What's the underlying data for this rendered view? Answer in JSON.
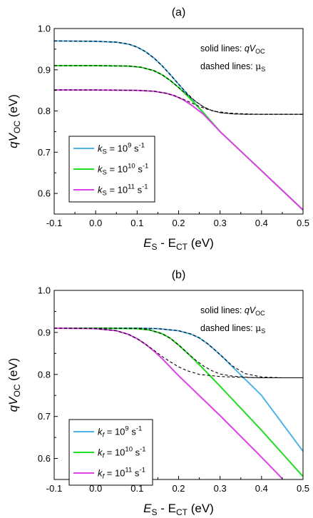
{
  "chart_data": [
    {
      "type": "line",
      "panel_label": "(a)",
      "xlabel": {
        "main": "E",
        "sub1": "S",
        "mid": " - E",
        "sub2": "CT",
        "unit": " (eV)"
      },
      "ylabel": {
        "pre": "qV",
        "sub": "OC",
        "unit": " (eV)"
      },
      "xlim": [
        -0.1,
        0.5
      ],
      "ylim": [
        0.55,
        1.0
      ],
      "xticks": [
        "-0.1",
        "0.0",
        "0.1",
        "0.2",
        "0.3",
        "0.4",
        "0.5"
      ],
      "yticks": [
        "0.6",
        "0.7",
        "0.8",
        "0.9",
        "1.0"
      ],
      "annotations": {
        "solid": {
          "text": "solid lines: ",
          "italic": "qV",
          "sub": "OC"
        },
        "dashed": {
          "text": "dashed lines: ",
          "mu": "μ",
          "sub": "S"
        }
      },
      "legend_position": "lower-left",
      "series": [
        {
          "name": "kS = 10^9 s^-1",
          "k": "k",
          "k_sub": "S",
          "exp": "9",
          "color": "#4fb3e8",
          "x": [
            -0.1,
            0.0,
            0.05,
            0.08,
            0.1,
            0.12,
            0.14,
            0.16,
            0.18,
            0.2,
            0.22,
            0.24,
            0.26,
            0.3,
            0.4,
            0.5
          ],
          "y": [
            0.97,
            0.969,
            0.967,
            0.962,
            0.955,
            0.944,
            0.929,
            0.91,
            0.888,
            0.865,
            0.842,
            0.818,
            0.795,
            0.75,
            0.655,
            0.56
          ]
        },
        {
          "name": "kS = 10^10 s^-1",
          "k": "k",
          "k_sub": "S",
          "exp": "10",
          "color": "#22dd22",
          "x": [
            -0.1,
            0.0,
            0.08,
            0.11,
            0.14,
            0.16,
            0.18,
            0.2,
            0.22,
            0.24,
            0.26,
            0.3,
            0.4,
            0.5
          ],
          "y": [
            0.91,
            0.91,
            0.909,
            0.906,
            0.898,
            0.888,
            0.874,
            0.857,
            0.838,
            0.817,
            0.796,
            0.75,
            0.655,
            0.56
          ]
        },
        {
          "name": "kS = 10^11 s^-1",
          "k": "k",
          "k_sub": "S",
          "exp": "11",
          "color": "#e040e8",
          "x": [
            -0.1,
            0.0,
            0.1,
            0.14,
            0.17,
            0.19,
            0.21,
            0.23,
            0.26,
            0.3,
            0.4,
            0.5
          ],
          "y": [
            0.851,
            0.851,
            0.85,
            0.848,
            0.843,
            0.837,
            0.828,
            0.815,
            0.792,
            0.75,
            0.655,
            0.56
          ]
        }
      ],
      "dashed_series": [
        {
          "x": [
            -0.1,
            0.0,
            0.05,
            0.08,
            0.1,
            0.12,
            0.14,
            0.16,
            0.18,
            0.2,
            0.22,
            0.24,
            0.26,
            0.28,
            0.3,
            0.33,
            0.36,
            0.4,
            0.5
          ],
          "y": [
            0.97,
            0.969,
            0.967,
            0.962,
            0.955,
            0.944,
            0.929,
            0.91,
            0.888,
            0.865,
            0.843,
            0.824,
            0.81,
            0.801,
            0.796,
            0.793,
            0.792,
            0.792,
            0.792
          ]
        },
        {
          "x": [
            -0.1,
            0.0,
            0.08,
            0.11,
            0.14,
            0.16,
            0.18,
            0.2,
            0.22,
            0.24,
            0.26,
            0.28,
            0.3,
            0.33,
            0.36,
            0.4,
            0.5
          ],
          "y": [
            0.91,
            0.91,
            0.909,
            0.906,
            0.898,
            0.888,
            0.874,
            0.857,
            0.84,
            0.824,
            0.81,
            0.801,
            0.796,
            0.793,
            0.792,
            0.792,
            0.792
          ]
        },
        {
          "x": [
            -0.1,
            0.0,
            0.1,
            0.14,
            0.17,
            0.19,
            0.21,
            0.23,
            0.25,
            0.27,
            0.29,
            0.32,
            0.36,
            0.4,
            0.5
          ],
          "y": [
            0.851,
            0.851,
            0.85,
            0.848,
            0.843,
            0.837,
            0.829,
            0.82,
            0.811,
            0.804,
            0.799,
            0.795,
            0.793,
            0.792,
            0.792
          ]
        }
      ]
    },
    {
      "type": "line",
      "panel_label": "(b)",
      "xlabel": {
        "main": "E",
        "sub1": "S",
        "mid": " - E",
        "sub2": "CT",
        "unit": " (eV)"
      },
      "ylabel": {
        "pre": "qV",
        "sub": "OC",
        "unit": " (eV)"
      },
      "xlim": [
        -0.1,
        0.5
      ],
      "ylim": [
        0.55,
        1.0
      ],
      "xticks": [
        "-0.1",
        "0.0",
        "0.1",
        "0.2",
        "0.3",
        "0.4",
        "0.5"
      ],
      "yticks": [
        "0.6",
        "0.7",
        "0.8",
        "0.9",
        "1.0"
      ],
      "annotations": {
        "solid": {
          "text": "solid lines: ",
          "italic": "qV",
          "sub": "OC"
        },
        "dashed": {
          "text": "dashed lines: ",
          "mu": "μ",
          "sub": "S"
        }
      },
      "legend_position": "lower-left",
      "series": [
        {
          "name": "kf = 10^9 s^-1",
          "k": "k",
          "k_sub": "f",
          "exp": "9",
          "color": "#4fb3e8",
          "x": [
            -0.1,
            0.0,
            0.1,
            0.15,
            0.2,
            0.23,
            0.25,
            0.27,
            0.29,
            0.31,
            0.33,
            0.36,
            0.4,
            0.5
          ],
          "y": [
            0.91,
            0.91,
            0.91,
            0.909,
            0.904,
            0.896,
            0.887,
            0.873,
            0.856,
            0.838,
            0.818,
            0.789,
            0.75,
            0.617
          ]
        },
        {
          "name": "kf = 10^10 s^-1",
          "k": "k",
          "k_sub": "f",
          "exp": "10",
          "color": "#22dd22",
          "x": [
            -0.1,
            0.0,
            0.1,
            0.13,
            0.16,
            0.18,
            0.2,
            0.22,
            0.24,
            0.26,
            0.3,
            0.4,
            0.5
          ],
          "y": [
            0.91,
            0.91,
            0.909,
            0.906,
            0.897,
            0.886,
            0.87,
            0.852,
            0.833,
            0.813,
            0.772,
            0.667,
            0.557
          ]
        },
        {
          "name": "kf = 10^11 s^-1",
          "k": "k",
          "k_sub": "f",
          "exp": "11",
          "color": "#e040e8",
          "x": [
            -0.1,
            0.0,
            0.05,
            0.08,
            0.1,
            0.12,
            0.14,
            0.16,
            0.2,
            0.3,
            0.4,
            0.45
          ],
          "y": [
            0.91,
            0.909,
            0.904,
            0.895,
            0.885,
            0.872,
            0.856,
            0.838,
            0.797,
            0.702,
            0.603,
            0.552
          ]
        }
      ],
      "dashed_series": [
        {
          "x": [
            -0.1,
            0.0,
            0.1,
            0.15,
            0.2,
            0.23,
            0.25,
            0.27,
            0.29,
            0.31,
            0.33,
            0.36,
            0.4,
            0.45,
            0.5
          ],
          "y": [
            0.91,
            0.91,
            0.91,
            0.909,
            0.904,
            0.896,
            0.887,
            0.873,
            0.856,
            0.838,
            0.82,
            0.802,
            0.794,
            0.792,
            0.792
          ]
        },
        {
          "x": [
            -0.1,
            0.0,
            0.1,
            0.13,
            0.16,
            0.18,
            0.2,
            0.22,
            0.24,
            0.26,
            0.28,
            0.3,
            0.33,
            0.37,
            0.4,
            0.5
          ],
          "y": [
            0.91,
            0.91,
            0.909,
            0.906,
            0.897,
            0.886,
            0.87,
            0.852,
            0.835,
            0.82,
            0.809,
            0.801,
            0.796,
            0.793,
            0.792,
            0.792
          ]
        },
        {
          "x": [
            -0.1,
            0.0,
            0.05,
            0.08,
            0.1,
            0.12,
            0.14,
            0.16,
            0.18,
            0.2,
            0.22,
            0.25,
            0.3,
            0.35,
            0.4,
            0.5
          ],
          "y": [
            0.91,
            0.909,
            0.904,
            0.895,
            0.885,
            0.872,
            0.858,
            0.843,
            0.83,
            0.818,
            0.809,
            0.8,
            0.795,
            0.793,
            0.792,
            0.792
          ]
        }
      ]
    }
  ]
}
